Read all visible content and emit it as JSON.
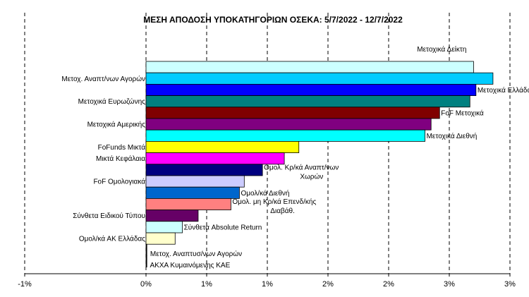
{
  "chart_data": {
    "type": "bar",
    "orientation": "horizontal",
    "title": "ΜΕΣΗ ΑΠΟΔΟΣΗ ΥΠΟΚΑΤΗΓΟΡΙΩΝ ΟΣΕΚΑ: 5/7/2022 - 12/7/2022",
    "xlim": [
      -1,
      3
    ],
    "x_ticks": [
      "-1%",
      "0%",
      "1%",
      "1%",
      "2%",
      "2%",
      "3%",
      "3%"
    ],
    "x_tick_values": [
      -1,
      0,
      0.5,
      1,
      1.5,
      2,
      2.5,
      3
    ],
    "grid": "vertical dashed",
    "legend": "none",
    "bars": [
      {
        "label": "Μετοχικά Δείκτη",
        "value": 2.7,
        "color": "#CCFFFF",
        "label_side": "right"
      },
      {
        "label": "Μετοχ. Αναπτ/νων Αγορών",
        "value": 2.86,
        "color": "#00CCFF",
        "label_side": "left"
      },
      {
        "label": "Μετοχικά Ελλάδας",
        "value": 2.72,
        "color": "#0000FF",
        "label_side": "right"
      },
      {
        "label": "Μετοχικά Ευρωζώνης",
        "value": 2.67,
        "color": "#008080",
        "label_side": "left"
      },
      {
        "label": "FoF Μετοχικά",
        "value": 2.42,
        "color": "#800000",
        "label_side": "right"
      },
      {
        "label": "Μετοχικά Αμερικής",
        "value": 2.35,
        "color": "#800080",
        "label_side": "left"
      },
      {
        "label": "Μετοχικά Διεθνή",
        "value": 2.3,
        "color": "#00FFFF",
        "label_side": "right"
      },
      {
        "label": "FoFunds Μικτά",
        "value": 1.26,
        "color": "#FFFF00",
        "label_side": "left"
      },
      {
        "label": "Μικτά Κεφάλαια",
        "value": 1.14,
        "color": "#FF00FF",
        "label_side": "left"
      },
      {
        "label": "Ομολ. Κρ/κά Αναπτ/νων Χωρών",
        "value": 0.96,
        "color": "#000080",
        "label_side": "right"
      },
      {
        "label": "FoF Ομολογιακά",
        "value": 0.81,
        "color": "#CCCCFF",
        "label_side": "left"
      },
      {
        "label": "Ομολ/κά Διεθνή",
        "value": 0.77,
        "color": "#0066CC",
        "label_side": "right"
      },
      {
        "label": "Ομολ. μη Κρ/κά Επενδ/κής Διαβάθ.",
        "value": 0.7,
        "color": "#FF8080",
        "label_side": "right"
      },
      {
        "label": "Σύνθετα Ειδικού Τύπου",
        "value": 0.43,
        "color": "#660066",
        "label_side": "left"
      },
      {
        "label": "Σύνθετα Absolute Return",
        "value": 0.3,
        "color": "#CCFFFF",
        "label_side": "right"
      },
      {
        "label": "Ομολ/κά ΑΚ Ελλάδας",
        "value": 0.24,
        "color": "#FFFFCC",
        "label_side": "left"
      },
      {
        "label": "Μετοχ. Αναπτυσ/νων Αγορών",
        "value": 0.005,
        "color": "#000000",
        "label_side": "right"
      },
      {
        "label": "ΑΚΧΑ Κυμαινόμενης ΚΑΕ",
        "value": 0.003,
        "color": "#000000",
        "label_side": "right"
      }
    ]
  }
}
